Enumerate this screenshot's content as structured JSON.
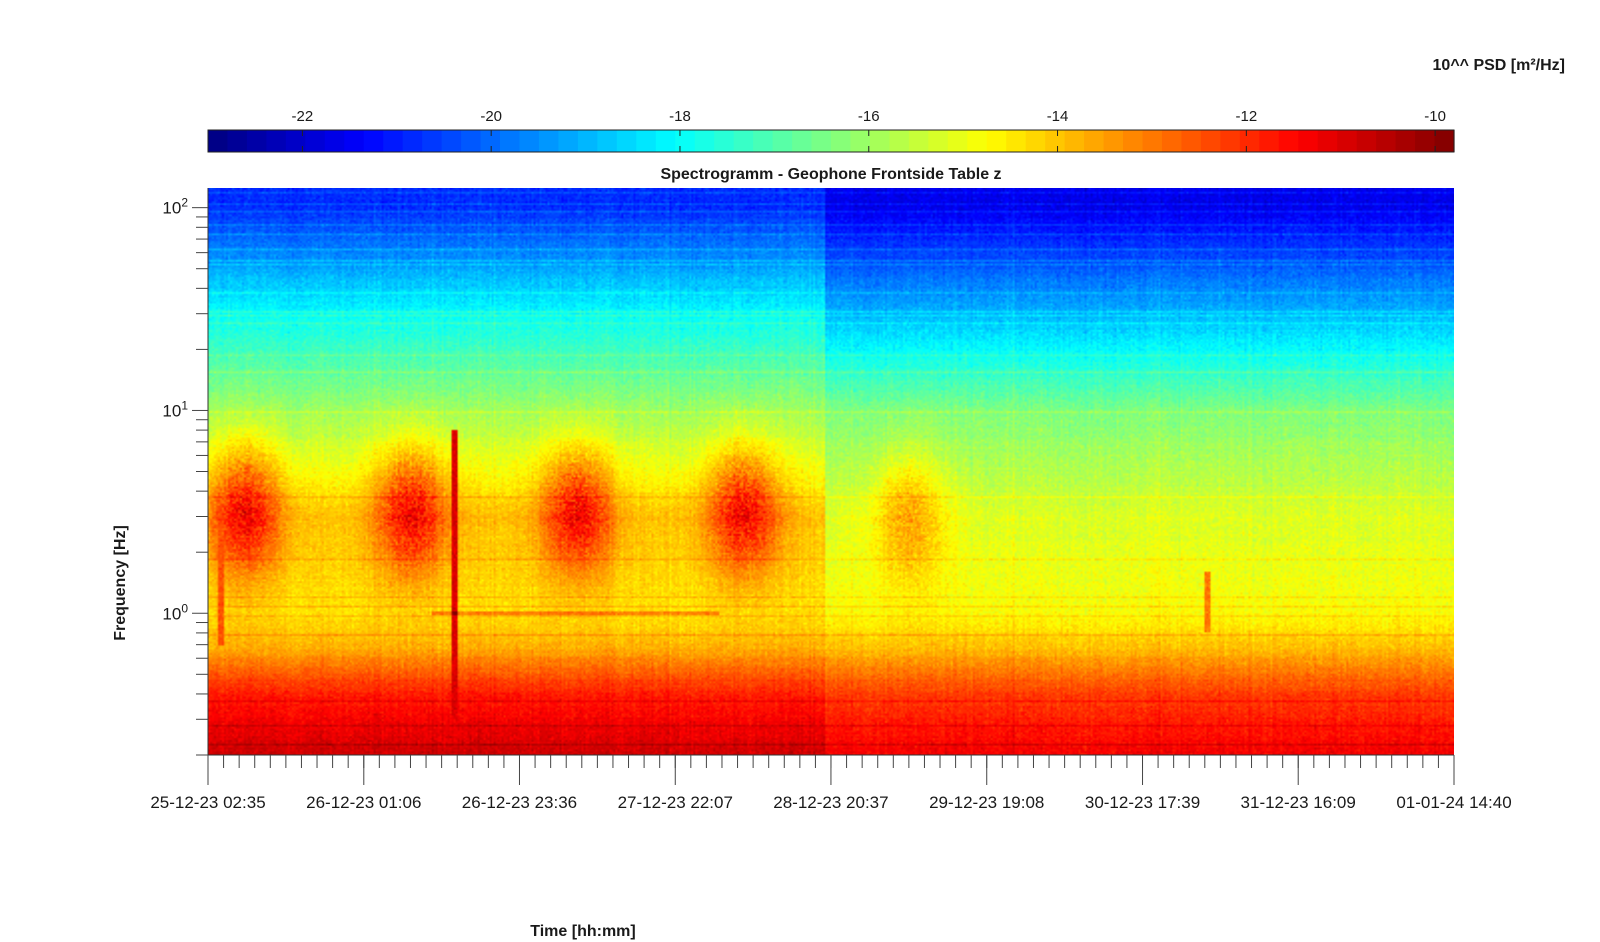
{
  "chart_data": {
    "type": "heatmap",
    "title": "Spectrogramm - Geophone Frontside Table z",
    "xlabel": "Time [hh:mm]",
    "ylabel": "Frequency [Hz]",
    "x_ticks": [
      "25-12-23 02:35",
      "26-12-23 01:06",
      "26-12-23 23:36",
      "27-12-23 22:07",
      "28-12-23 20:37",
      "29-12-23 19:08",
      "30-12-23 17:39",
      "31-12-23 16:09",
      "01-01-24 14:40"
    ],
    "xlim": [
      "25-12-23 02:35",
      "01-01-24 14:40"
    ],
    "y_scale": "log",
    "ylim": [
      0.2,
      125
    ],
    "y_ticks": [
      {
        "value": 1,
        "mantissa": "10",
        "exponent": "0"
      },
      {
        "value": 10,
        "mantissa": "10",
        "exponent": "1"
      },
      {
        "value": 100,
        "mantissa": "10",
        "exponent": "2"
      }
    ],
    "colorbar": {
      "label": "10^^ PSD [m²/Hz]",
      "location": "top",
      "colormap": "jet",
      "range": [
        -23,
        -9.8
      ],
      "ticks": [
        -22,
        -20,
        -18,
        -16,
        -14,
        -12,
        -10
      ],
      "tick_labels": [
        "-22",
        "-20",
        "-18",
        "-16",
        "-14",
        "-12",
        "-10"
      ]
    },
    "psd_profile_log10": [
      {
        "freq_hz": 0.2,
        "before_28_12": -10.8,
        "after_28_12": -11.3
      },
      {
        "freq_hz": 0.4,
        "before_28_12": -11.8,
        "after_28_12": -12.2
      },
      {
        "freq_hz": 0.7,
        "before_28_12": -13.8,
        "after_28_12": -14.0
      },
      {
        "freq_hz": 1.0,
        "before_28_12": -14.4,
        "after_28_12": -14.8
      },
      {
        "freq_hz": 3.0,
        "before_28_12": -14.0,
        "after_28_12": -15.2
      },
      {
        "freq_hz": 10,
        "before_28_12": -16.0,
        "after_28_12": -16.4
      },
      {
        "freq_hz": 30,
        "before_28_12": -18.0,
        "after_28_12": -19.0
      },
      {
        "freq_hz": 100,
        "before_28_12": -20.8,
        "after_28_12": -21.6
      }
    ],
    "events": [
      {
        "time": "26-12-23 14:10",
        "freq_range_hz": [
          0.3,
          8
        ],
        "log10_psd": -11
      },
      {
        "time": "25-12-23 04:30",
        "freq_range_hz": [
          0.7,
          3
        ],
        "log10_psd": -12.5
      },
      {
        "time": "31-12-23 03:00",
        "freq_range_hz": [
          0.8,
          1.6
        ],
        "log10_psd": -13
      }
    ],
    "activity_bursts": [
      {
        "time": "25-12-23 08:00",
        "freq_hz": 3.2
      },
      {
        "time": "26-12-23 08:00",
        "freq_hz": 3.2
      },
      {
        "time": "27-12-23 08:00",
        "freq_hz": 3.2
      },
      {
        "time": "28-12-23 08:00",
        "freq_hz": 3.2
      },
      {
        "time": "29-12-23 08:00",
        "freq_hz": 3.0
      }
    ],
    "grid": false
  }
}
